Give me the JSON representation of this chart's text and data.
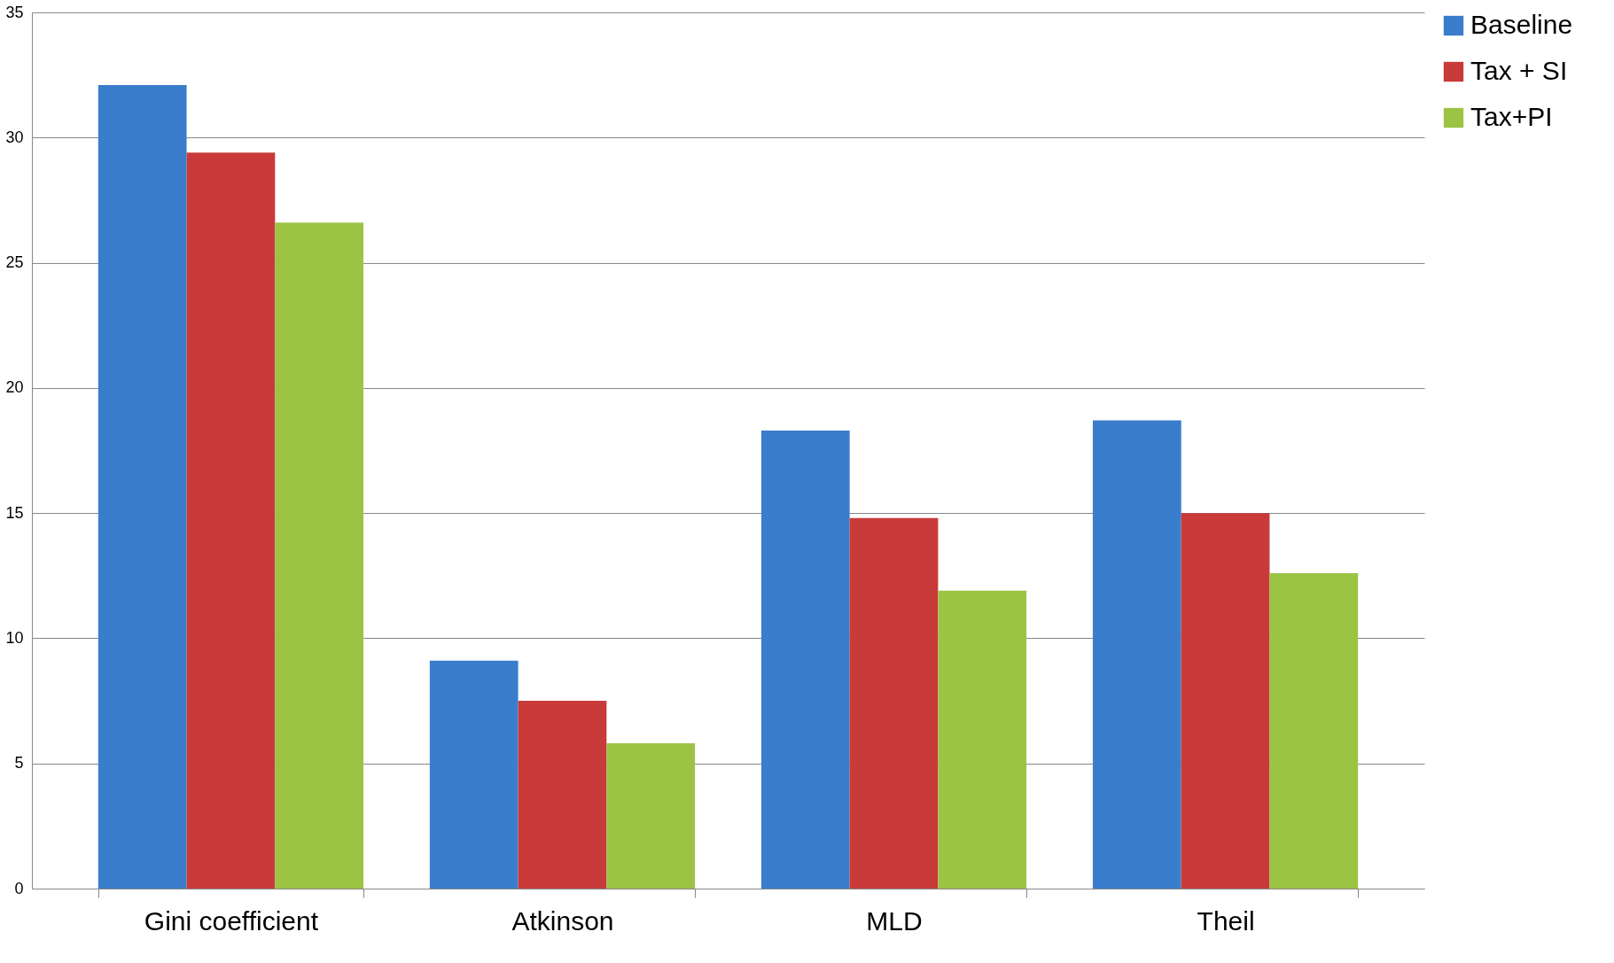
{
  "chart_data": {
    "type": "bar",
    "categories": [
      "Gini coefficient",
      "Atkinson",
      "MLD",
      "Theil"
    ],
    "series": [
      {
        "name": "Baseline",
        "color": "#3a7dcc",
        "values": [
          32.1,
          9.1,
          18.3,
          18.7
        ]
      },
      {
        "name": "Tax + SI",
        "color": "#c93a3a",
        "values": [
          29.4,
          7.5,
          14.8,
          15.0
        ]
      },
      {
        "name": "Tax+PI",
        "color": "#9bc444",
        "values": [
          26.6,
          5.8,
          11.9,
          12.6
        ]
      }
    ],
    "ylim": [
      0,
      35
    ],
    "yticks": [
      0,
      5,
      10,
      15,
      20,
      25,
      30,
      35
    ],
    "grid": "y",
    "legend": "right"
  }
}
